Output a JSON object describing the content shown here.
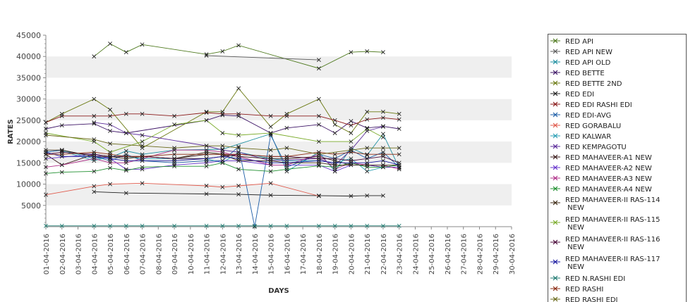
{
  "chart_data": {
    "type": "line",
    "title": "",
    "xlabel": "DAYS",
    "ylabel": "RATES",
    "ylim": [
      0,
      45000
    ],
    "yticks": [
      5000,
      10000,
      15000,
      20000,
      25000,
      30000,
      35000,
      40000,
      45000
    ],
    "grid": "horizontal bands",
    "legend_position": "right",
    "categories": [
      "01-04-2016",
      "02-04-2016",
      "03-04-2016",
      "04-04-2016",
      "05-04-2016",
      "06-04-2016",
      "07-04-2016",
      "08-04-2016",
      "09-04-2016",
      "10-04-2016",
      "11-04-2016",
      "12-04-2016",
      "13-04-2016",
      "14-04-2016",
      "15-04-2016",
      "16-04-2016",
      "17-04-2016",
      "18-04-2016",
      "19-04-2016",
      "20-04-2016",
      "21-04-2016",
      "22-04-2016",
      "23-04-2016",
      "24-04-2016",
      "25-04-2016",
      "26-04-2016",
      "27-04-2016",
      "28-04-2016",
      "29-04-2016",
      "30-04-2016"
    ],
    "series": [
      {
        "name": "RED API",
        "color": "#4f7a1f",
        "values": [
          null,
          null,
          null,
          40000,
          43000,
          41000,
          42800,
          null,
          null,
          null,
          40500,
          41200,
          42600,
          null,
          null,
          null,
          null,
          37200,
          null,
          41000,
          41200,
          41000,
          null,
          null,
          null,
          null,
          null,
          null,
          null,
          null
        ]
      },
      {
        "name": "RED API NEW",
        "color": "#5c5c5c",
        "values": [
          null,
          null,
          null,
          null,
          null,
          null,
          null,
          null,
          null,
          null,
          40200,
          null,
          null,
          null,
          null,
          null,
          null,
          39200,
          null,
          null,
          null,
          null,
          null,
          null,
          null,
          null,
          null,
          null,
          null,
          null
        ]
      },
      {
        "name": "RED API OLD",
        "color": "#1e8fa0",
        "values": [
          17500,
          18000,
          null,
          16000,
          16200,
          17800,
          17000,
          null,
          18000,
          null,
          null,
          18200,
          null,
          null,
          21800,
          13000,
          null,
          17500,
          13000,
          18500,
          16800,
          21800,
          13800,
          null,
          null,
          null,
          null,
          null,
          null,
          null
        ]
      },
      {
        "name": "RED BETTE",
        "color": "#3d1466",
        "values": [
          23000,
          23800,
          null,
          24200,
          22500,
          22000,
          null,
          null,
          null,
          null,
          25000,
          26200,
          26000,
          null,
          22000,
          23200,
          null,
          24000,
          22000,
          24800,
          23200,
          23600,
          23000,
          null,
          null,
          null,
          null,
          null,
          null,
          null
        ]
      },
      {
        "name": "RED BETTE 2ND",
        "color": "#6b7a12",
        "values": [
          24500,
          26500,
          null,
          30000,
          27500,
          null,
          18500,
          null,
          null,
          null,
          27000,
          27000,
          32500,
          null,
          23500,
          26500,
          null,
          30000,
          24000,
          22000,
          27000,
          27000,
          26500,
          null,
          null,
          null,
          null,
          null,
          null,
          null
        ]
      },
      {
        "name": "RED EDI",
        "color": "#222222",
        "values": [
          null,
          null,
          null,
          8200,
          null,
          7900,
          null,
          null,
          null,
          null,
          7700,
          null,
          7600,
          null,
          7400,
          null,
          null,
          7300,
          null,
          7200,
          7300,
          7300,
          null,
          null,
          null,
          null,
          null,
          null,
          null,
          null
        ]
      },
      {
        "name": "RED EDI RASHI EDI",
        "color": "#8a1a1a",
        "values": [
          24500,
          26000,
          null,
          26000,
          26000,
          26500,
          26500,
          null,
          26000,
          null,
          26800,
          26500,
          26500,
          null,
          26000,
          26000,
          null,
          26000,
          25000,
          23800,
          25200,
          25600,
          25200,
          null,
          null,
          null,
          null,
          null,
          null,
          null
        ]
      },
      {
        "name": "RED EDI-AVG",
        "color": "#1f5fa8",
        "values": [
          17500,
          18000,
          null,
          16500,
          15500,
          17000,
          15500,
          null,
          15000,
          null,
          15500,
          15500,
          18800,
          0,
          21500,
          14000,
          null,
          17000,
          16000,
          18000,
          16000,
          17500,
          14000,
          null,
          null,
          null,
          null,
          null,
          null,
          null
        ]
      },
      {
        "name": "RED GORABALU",
        "color": "#e05a4c",
        "values": [
          7500,
          null,
          null,
          9500,
          10000,
          null,
          10200,
          null,
          null,
          null,
          9600,
          9300,
          9600,
          null,
          10200,
          null,
          null,
          7200,
          null,
          null,
          null,
          null,
          null,
          null,
          null,
          null,
          null,
          null,
          null,
          null
        ]
      },
      {
        "name": "RED KALWAR",
        "color": "#2a9fb5",
        "values": [
          null,
          17800,
          null,
          15500,
          16500,
          16500,
          16000,
          null,
          null,
          null,
          16000,
          15000,
          17500,
          null,
          16000,
          15500,
          null,
          15500,
          15000,
          16000,
          13000,
          14000,
          14500,
          null,
          null,
          null,
          null,
          null,
          null,
          null
        ]
      },
      {
        "name": "RED KEMPAGOTU",
        "color": "#5a2a99",
        "values": [
          null,
          null,
          null,
          24500,
          24000,
          22000,
          21500,
          null,
          null,
          null,
          19000,
          18000,
          17500,
          null,
          15500,
          null,
          null,
          16000,
          14500,
          18000,
          22500,
          23500,
          null,
          null,
          null,
          null,
          null,
          null,
          null,
          null
        ]
      },
      {
        "name": "RED MAHAVEER-A1 NEW",
        "color": "#3a1a1a",
        "values": [
          17000,
          14500,
          null,
          17000,
          16500,
          16500,
          16500,
          null,
          16000,
          null,
          17000,
          17000,
          16500,
          null,
          16000,
          16000,
          null,
          16500,
          15500,
          14500,
          14500,
          14000,
          14000,
          null,
          null,
          null,
          null,
          null,
          null,
          null
        ]
      },
      {
        "name": "RED MAHAVEER-A2 NEW",
        "color": "#6633cc",
        "values": [
          16000,
          null,
          null,
          17000,
          16000,
          13500,
          13500,
          null,
          14500,
          null,
          15000,
          15500,
          15500,
          null,
          14500,
          null,
          null,
          14500,
          13000,
          14500,
          14500,
          14000,
          14000,
          null,
          null,
          null,
          null,
          null,
          null,
          null
        ]
      },
      {
        "name": "RED MAHAVEER-A3 NEW",
        "color": "#b0308a",
        "values": [
          14000,
          14500,
          null,
          16000,
          15000,
          15000,
          16000,
          null,
          18000,
          null,
          18000,
          17500,
          16500,
          null,
          14500,
          14500,
          null,
          17000,
          13500,
          15000,
          14500,
          14500,
          13500,
          null,
          null,
          null,
          null,
          null,
          null,
          null
        ]
      },
      {
        "name": "RED MAHAVEER-A4 NEW",
        "color": "#1f8f2f",
        "values": [
          12500,
          12800,
          null,
          13000,
          13800,
          13200,
          14000,
          null,
          14200,
          null,
          14200,
          15000,
          13500,
          null,
          13000,
          13500,
          null,
          14300,
          14000,
          15000,
          14000,
          14000,
          14500,
          null,
          null,
          null,
          null,
          null,
          null,
          null
        ]
      },
      {
        "name": "RED MAHAVEER-II RAS-114 NEW",
        "color": "#3c2a14",
        "values": [
          18000,
          18000,
          null,
          16500,
          16500,
          16000,
          16500,
          null,
          16000,
          null,
          17500,
          17000,
          15500,
          null,
          15500,
          15000,
          null,
          15000,
          14500,
          14500,
          14500,
          14500,
          14500,
          null,
          null,
          null,
          null,
          null,
          null,
          null
        ]
      },
      {
        "name": "RED MAHAVEER-II RAS-115 NEW",
        "color": "#7aab2a",
        "values": [
          22000,
          null,
          null,
          20000,
          17500,
          null,
          20000,
          null,
          24000,
          null,
          25000,
          22000,
          21500,
          null,
          22000,
          null,
          null,
          20000,
          null,
          20000,
          23000,
          21000,
          null,
          null,
          null,
          null,
          null,
          null,
          null,
          null
        ]
      },
      {
        "name": "RED MAHAVEER-II RAS-116 NEW",
        "color": "#4a0a3a",
        "values": [
          17000,
          17500,
          null,
          17000,
          16500,
          16500,
          16500,
          null,
          16000,
          null,
          16000,
          16500,
          17000,
          null,
          16500,
          16500,
          null,
          16000,
          16000,
          15500,
          16000,
          16500,
          15000,
          null,
          null,
          null,
          null,
          null,
          null,
          null
        ]
      },
      {
        "name": "RED MAHAVEER-II RAS-117 NEW",
        "color": "#1a1aa0",
        "values": [
          17500,
          16500,
          null,
          16500,
          16000,
          15500,
          15500,
          null,
          15500,
          null,
          16000,
          16500,
          16000,
          null,
          15000,
          15000,
          null,
          15500,
          15000,
          15000,
          15000,
          15500,
          14500,
          null,
          null,
          null,
          null,
          null,
          null,
          null
        ]
      },
      {
        "name": "RED N.RASHI EDI",
        "color": "#1f7a70",
        "values": [
          200,
          200,
          null,
          200,
          200,
          200,
          200,
          null,
          200,
          null,
          200,
          200,
          200,
          200,
          200,
          200,
          null,
          200,
          200,
          200,
          200,
          200,
          200,
          null,
          null,
          null,
          null,
          null,
          null,
          null
        ]
      },
      {
        "name": "RED RASHI",
        "color": "#8b2a10",
        "values": [
          17000,
          17000,
          null,
          17500,
          17000,
          16500,
          16500,
          null,
          17000,
          null,
          17000,
          17000,
          17000,
          null,
          16500,
          16500,
          null,
          17500,
          17000,
          17500,
          17000,
          17000,
          17000,
          null,
          null,
          null,
          null,
          null,
          null,
          null
        ]
      },
      {
        "name": "RED RASHI EDI",
        "color": "#6a6a1a",
        "values": [
          21500,
          null,
          null,
          20500,
          19500,
          null,
          19000,
          null,
          18500,
          null,
          19000,
          19000,
          18500,
          null,
          18000,
          18500,
          null,
          17000,
          null,
          18000,
          18500,
          18500,
          18500,
          null,
          null,
          null,
          null,
          null,
          null,
          null
        ]
      }
    ]
  }
}
